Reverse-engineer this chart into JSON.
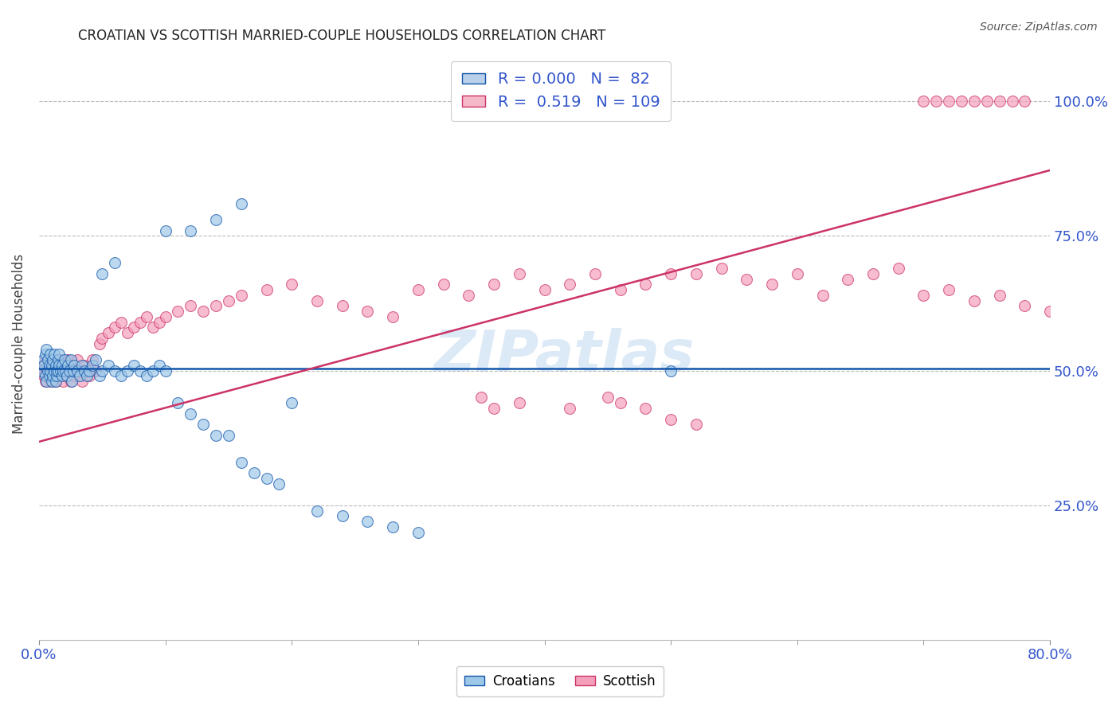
{
  "title": "CROATIAN VS SCOTTISH MARRIED-COUPLE HOUSEHOLDS CORRELATION CHART",
  "source": "Source: ZipAtlas.com",
  "ylabel": "Married-couple Households",
  "watermark": "ZIPatlas",
  "legend": {
    "croatians": {
      "R": "0.000",
      "N": "82",
      "color": "#b8d0ea"
    },
    "scottish": {
      "R": "0.519",
      "N": "109",
      "color": "#f4b8c8"
    }
  },
  "ytick_labels": [
    "25.0%",
    "50.0%",
    "75.0%",
    "100.0%"
  ],
  "ytick_values": [
    0.25,
    0.5,
    0.75,
    1.0
  ],
  "xlim": [
    0.0,
    0.8
  ],
  "ylim": [
    0.0,
    1.1
  ],
  "croatians_x": [
    0.002,
    0.003,
    0.004,
    0.005,
    0.005,
    0.006,
    0.006,
    0.007,
    0.007,
    0.008,
    0.008,
    0.009,
    0.009,
    0.01,
    0.01,
    0.011,
    0.011,
    0.012,
    0.012,
    0.013,
    0.013,
    0.014,
    0.014,
    0.015,
    0.015,
    0.016,
    0.016,
    0.017,
    0.018,
    0.018,
    0.019,
    0.02,
    0.021,
    0.022,
    0.023,
    0.024,
    0.025,
    0.026,
    0.027,
    0.028,
    0.03,
    0.032,
    0.034,
    0.036,
    0.038,
    0.04,
    0.042,
    0.045,
    0.048,
    0.05,
    0.055,
    0.06,
    0.065,
    0.07,
    0.075,
    0.08,
    0.085,
    0.09,
    0.095,
    0.1,
    0.11,
    0.12,
    0.13,
    0.14,
    0.15,
    0.16,
    0.17,
    0.18,
    0.19,
    0.2,
    0.22,
    0.24,
    0.26,
    0.28,
    0.3,
    0.1,
    0.12,
    0.14,
    0.16,
    0.5,
    0.05,
    0.06
  ],
  "croatians_y": [
    0.5,
    0.52,
    0.51,
    0.49,
    0.53,
    0.54,
    0.48,
    0.5,
    0.52,
    0.51,
    0.49,
    0.53,
    0.5,
    0.48,
    0.51,
    0.52,
    0.49,
    0.5,
    0.53,
    0.51,
    0.48,
    0.49,
    0.5,
    0.52,
    0.5,
    0.51,
    0.53,
    0.5,
    0.49,
    0.51,
    0.5,
    0.52,
    0.5,
    0.49,
    0.51,
    0.5,
    0.52,
    0.48,
    0.5,
    0.51,
    0.5,
    0.49,
    0.51,
    0.5,
    0.49,
    0.5,
    0.51,
    0.52,
    0.49,
    0.5,
    0.51,
    0.5,
    0.49,
    0.5,
    0.51,
    0.5,
    0.49,
    0.5,
    0.51,
    0.5,
    0.44,
    0.42,
    0.4,
    0.38,
    0.38,
    0.33,
    0.31,
    0.3,
    0.29,
    0.44,
    0.24,
    0.23,
    0.22,
    0.21,
    0.2,
    0.76,
    0.76,
    0.78,
    0.81,
    0.5,
    0.68,
    0.7
  ],
  "scottish_x": [
    0.002,
    0.003,
    0.004,
    0.005,
    0.005,
    0.006,
    0.007,
    0.007,
    0.008,
    0.009,
    0.009,
    0.01,
    0.01,
    0.011,
    0.012,
    0.012,
    0.013,
    0.014,
    0.015,
    0.016,
    0.017,
    0.018,
    0.019,
    0.02,
    0.021,
    0.022,
    0.023,
    0.024,
    0.025,
    0.026,
    0.027,
    0.028,
    0.03,
    0.032,
    0.034,
    0.036,
    0.038,
    0.04,
    0.042,
    0.045,
    0.048,
    0.05,
    0.055,
    0.06,
    0.065,
    0.07,
    0.075,
    0.08,
    0.085,
    0.09,
    0.095,
    0.1,
    0.11,
    0.12,
    0.13,
    0.14,
    0.15,
    0.16,
    0.18,
    0.2,
    0.22,
    0.24,
    0.26,
    0.28,
    0.3,
    0.32,
    0.34,
    0.36,
    0.38,
    0.4,
    0.42,
    0.44,
    0.46,
    0.48,
    0.5,
    0.52,
    0.54,
    0.56,
    0.58,
    0.6,
    0.62,
    0.64,
    0.66,
    0.68,
    0.7,
    0.72,
    0.74,
    0.76,
    0.78,
    0.8,
    0.7,
    0.71,
    0.72,
    0.73,
    0.74,
    0.75,
    0.76,
    0.77,
    0.78,
    0.35,
    0.36,
    0.38,
    0.42,
    0.45,
    0.46,
    0.48,
    0.5,
    0.52
  ],
  "scottish_y": [
    0.5,
    0.51,
    0.49,
    0.52,
    0.48,
    0.51,
    0.5,
    0.49,
    0.52,
    0.5,
    0.48,
    0.51,
    0.5,
    0.49,
    0.52,
    0.5,
    0.48,
    0.51,
    0.5,
    0.49,
    0.52,
    0.5,
    0.48,
    0.51,
    0.5,
    0.49,
    0.52,
    0.5,
    0.48,
    0.51,
    0.5,
    0.49,
    0.52,
    0.5,
    0.48,
    0.51,
    0.5,
    0.49,
    0.52,
    0.5,
    0.55,
    0.56,
    0.57,
    0.58,
    0.59,
    0.57,
    0.58,
    0.59,
    0.6,
    0.58,
    0.59,
    0.6,
    0.61,
    0.62,
    0.61,
    0.62,
    0.63,
    0.64,
    0.65,
    0.66,
    0.63,
    0.62,
    0.61,
    0.6,
    0.65,
    0.66,
    0.64,
    0.66,
    0.68,
    0.65,
    0.66,
    0.68,
    0.65,
    0.66,
    0.68,
    0.68,
    0.69,
    0.67,
    0.66,
    0.68,
    0.64,
    0.67,
    0.68,
    0.69,
    0.64,
    0.65,
    0.63,
    0.64,
    0.62,
    0.61,
    1.0,
    1.0,
    1.0,
    1.0,
    1.0,
    1.0,
    1.0,
    1.0,
    1.0,
    0.45,
    0.43,
    0.44,
    0.43,
    0.45,
    0.44,
    0.43,
    0.41,
    0.4
  ],
  "blue_line_x": [
    0.0,
    0.8
  ],
  "blue_line_y": [
    0.504,
    0.504
  ],
  "pink_line_x": [
    0.0,
    0.8
  ],
  "pink_line_y": [
    0.368,
    0.872
  ],
  "bg_color": "#ffffff",
  "grid_color": "#bbbbbb",
  "scatter_blue_color": "#9ec8e8",
  "scatter_pink_color": "#f4a0bb",
  "line_blue_color": "#1155aa",
  "line_pink_color": "#cc3366",
  "axis_label_color": "#3355cc",
  "title_color": "#222222"
}
